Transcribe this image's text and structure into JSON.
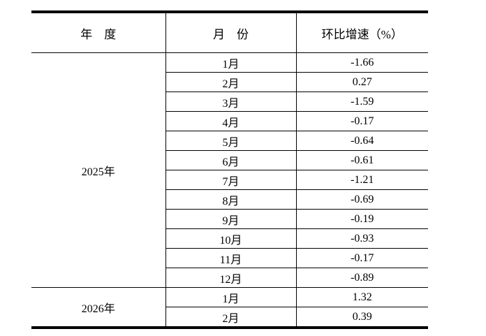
{
  "colors": {
    "background": "#ffffff",
    "border": "#000000",
    "text": "#000000"
  },
  "table": {
    "headers": [
      "年　度",
      "月　份",
      "环比增速（%）"
    ],
    "groups": [
      {
        "year": "2025年",
        "rows": [
          {
            "month": "1月",
            "value": "-1.66"
          },
          {
            "month": "2月",
            "value": "0.27"
          },
          {
            "month": "3月",
            "value": "-1.59"
          },
          {
            "month": "4月",
            "value": "-0.17"
          },
          {
            "month": "5月",
            "value": "-0.64"
          },
          {
            "month": "6月",
            "value": "-0.61"
          },
          {
            "month": "7月",
            "value": "-1.21"
          },
          {
            "month": "8月",
            "value": "-0.69"
          },
          {
            "month": "9月",
            "value": "-0.19"
          },
          {
            "month": "10月",
            "value": "-0.93"
          },
          {
            "month": "11月",
            "value": "-0.17"
          },
          {
            "month": "12月",
            "value": "-0.89"
          }
        ]
      },
      {
        "year": "2026年",
        "rows": [
          {
            "month": "1月",
            "value": "1.32"
          },
          {
            "month": "2月",
            "value": "0.39"
          }
        ]
      }
    ]
  },
  "chart_data": {
    "type": "table",
    "title": "",
    "columns": [
      "年度",
      "月份",
      "环比增速（%）"
    ],
    "rows": [
      [
        "2025年",
        "1月",
        -1.66
      ],
      [
        "2025年",
        "2月",
        0.27
      ],
      [
        "2025年",
        "3月",
        -1.59
      ],
      [
        "2025年",
        "4月",
        -0.17
      ],
      [
        "2025年",
        "5月",
        -0.64
      ],
      [
        "2025年",
        "6月",
        -0.61
      ],
      [
        "2025年",
        "7月",
        -1.21
      ],
      [
        "2025年",
        "8月",
        -0.69
      ],
      [
        "2025年",
        "9月",
        -0.19
      ],
      [
        "2025年",
        "10月",
        -0.93
      ],
      [
        "2025年",
        "11月",
        -0.17
      ],
      [
        "2025年",
        "12月",
        -0.89
      ],
      [
        "2026年",
        "1月",
        1.32
      ],
      [
        "2026年",
        "2月",
        0.39
      ]
    ]
  }
}
